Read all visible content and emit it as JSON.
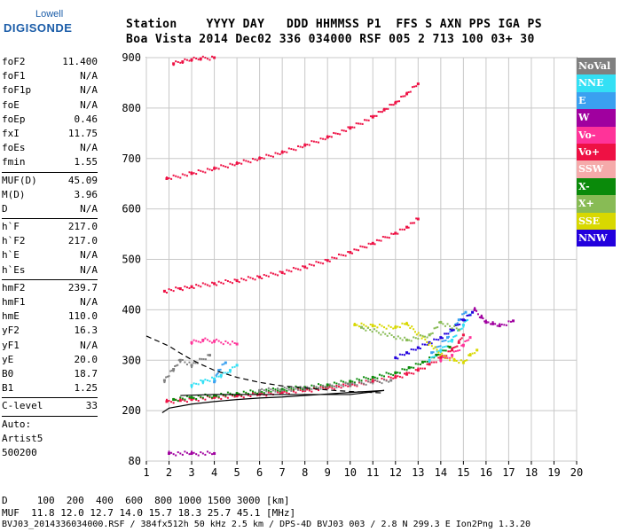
{
  "logo": {
    "line1": "Lowell",
    "line2": "DIGISONDE"
  },
  "header": {
    "line1": "Station    YYYY DAY   DDD HHMMSS P1  FFS S AXN PPS IGA PS",
    "line2": "Boa Vista 2014 Dec02 336 034000 RSF 005 2 713 100 03+ 30"
  },
  "params": {
    "group1": [
      {
        "name": "foF2",
        "value": "11.400"
      },
      {
        "name": "foF1",
        "value": "N/A"
      },
      {
        "name": "foF1p",
        "value": "N/A"
      },
      {
        "name": "foE",
        "value": "N/A"
      },
      {
        "name": "foEp",
        "value": "0.46"
      },
      {
        "name": "fxI",
        "value": "11.75"
      },
      {
        "name": "foEs",
        "value": "N/A"
      },
      {
        "name": "fmin",
        "value": "1.55"
      }
    ],
    "group2": [
      {
        "name": "MUF(D)",
        "value": "45.09"
      },
      {
        "name": "M(D)",
        "value": "3.96"
      },
      {
        "name": "D",
        "value": "N/A"
      }
    ],
    "group3": [
      {
        "name": "h`F",
        "value": "217.0"
      },
      {
        "name": "h`F2",
        "value": "217.0"
      },
      {
        "name": "h`E",
        "value": "N/A"
      },
      {
        "name": "h`Es",
        "value": "N/A"
      }
    ],
    "group4": [
      {
        "name": "hmF2",
        "value": "239.7"
      },
      {
        "name": "hmF1",
        "value": "N/A"
      },
      {
        "name": "hmE",
        "value": "110.0"
      },
      {
        "name": "yF2",
        "value": "16.3"
      },
      {
        "name": "yF1",
        "value": "N/A"
      },
      {
        "name": "yE",
        "value": "20.0"
      },
      {
        "name": "B0",
        "value": "18.7"
      },
      {
        "name": "B1",
        "value": "1.25"
      }
    ],
    "group5": [
      {
        "name": "C-level",
        "value": "33"
      }
    ],
    "auto_lines": [
      "Auto:",
      "Artist5",
      "500200"
    ]
  },
  "legend": [
    {
      "label": "NoVal",
      "color": "#808080"
    },
    {
      "label": "NNE",
      "color": "#33e0f5"
    },
    {
      "label": "E",
      "color": "#3aa0f0"
    },
    {
      "label": "W",
      "color": "#a0009f"
    },
    {
      "label": "Vo-",
      "color": "#ff3399"
    },
    {
      "label": "Vo+",
      "color": "#ee1144"
    },
    {
      "label": "SSW",
      "color": "#f5aaaa"
    },
    {
      "label": "X-",
      "color": "#0a8a0a"
    },
    {
      "label": "X+",
      "color": "#88bb55"
    },
    {
      "label": "SSE",
      "color": "#d8d800"
    },
    {
      "label": "NNW",
      "color": "#2200dd"
    }
  ],
  "footer": {
    "d_line": "D     100  200  400  600  800 1000 1500 3000 [km]",
    "muf_line": "MUF  11.8 12.0 12.7 14.0 15.7 18.3 25.7 45.1 [MHz]",
    "file_line": "BVJ03_2014336034000.RSF / 384fx512h 50 kHz 2.5 km / DPS-4D BVJ03 003 / 2.8 N 299.3 E Ion2Png 1.3.20"
  },
  "chart_data": {
    "type": "scatter",
    "x_range": [
      1,
      20
    ],
    "y_range": [
      80,
      900
    ],
    "x_ticks": [
      "1",
      "2",
      "3",
      "4",
      "5",
      "6",
      "7",
      "8",
      "9",
      "10",
      "11",
      "12",
      "13",
      "14",
      "15",
      "16",
      "17",
      "18",
      "19",
      "20"
    ],
    "y_ticks": [
      {
        "label": "80",
        "value": 80
      },
      {
        "label": "200",
        "value": 200
      },
      {
        "label": "300",
        "value": 300
      },
      {
        "label": "400",
        "value": 400
      },
      {
        "label": "500",
        "value": 500
      },
      {
        "label": "600",
        "value": 600
      },
      {
        "label": "700",
        "value": 700
      },
      {
        "label": "800",
        "value": 800
      },
      {
        "label": "900",
        "value": 900
      }
    ],
    "traces": [
      {
        "name": "F2 o-trace",
        "color": "#ee1144",
        "points": [
          [
            1.9,
            218
          ],
          [
            2.5,
            220
          ],
          [
            3,
            222
          ],
          [
            4,
            226
          ],
          [
            5,
            229
          ],
          [
            6,
            232
          ],
          [
            7,
            236
          ],
          [
            8,
            240
          ],
          [
            9,
            245
          ],
          [
            10,
            250
          ],
          [
            11,
            258
          ],
          [
            12,
            266
          ],
          [
            12.5,
            272
          ],
          [
            13,
            280
          ],
          [
            13.5,
            292
          ],
          [
            14,
            305
          ],
          [
            14.5,
            320
          ],
          [
            14.8,
            335
          ],
          [
            15,
            350
          ]
        ]
      },
      {
        "name": "2F2 echo",
        "color": "#ee1144",
        "points": [
          [
            1.8,
            437
          ],
          [
            2.5,
            442
          ],
          [
            3,
            446
          ],
          [
            4,
            452
          ],
          [
            5,
            458
          ],
          [
            6,
            465
          ],
          [
            7,
            474
          ],
          [
            8,
            485
          ],
          [
            9,
            498
          ],
          [
            10,
            514
          ],
          [
            11,
            532
          ],
          [
            12,
            552
          ],
          [
            12.5,
            564
          ],
          [
            13,
            580
          ]
        ]
      },
      {
        "name": "3F2 echo",
        "color": "#ee1144",
        "points": [
          [
            1.9,
            660
          ],
          [
            3,
            670
          ],
          [
            4,
            680
          ],
          [
            5,
            690
          ],
          [
            6,
            700
          ],
          [
            7,
            712
          ],
          [
            8,
            726
          ],
          [
            9,
            742
          ],
          [
            10,
            760
          ],
          [
            11,
            782
          ],
          [
            11.5,
            796
          ],
          [
            12,
            810
          ],
          [
            12.5,
            828
          ],
          [
            13,
            848
          ]
        ]
      },
      {
        "name": "4F2 echo",
        "color": "#ee1144",
        "points": [
          [
            2.2,
            888
          ],
          [
            2.6,
            892
          ],
          [
            3,
            896
          ],
          [
            3.4,
            898
          ],
          [
            4,
            900
          ]
        ]
      },
      {
        "name": "X-trace",
        "color": "#0a8a0a",
        "points": [
          [
            2.2,
            222
          ],
          [
            3,
            226
          ],
          [
            4,
            230
          ],
          [
            5,
            234
          ],
          [
            6,
            238
          ],
          [
            7,
            242
          ],
          [
            8,
            246
          ],
          [
            9,
            251
          ],
          [
            10,
            258
          ],
          [
            11,
            266
          ],
          [
            12,
            275
          ],
          [
            12.6,
            285
          ],
          [
            13.2,
            296
          ],
          [
            13.8,
            310
          ],
          [
            14.4,
            326
          ]
        ]
      },
      {
        "name": "Oblique NNE",
        "color": "#33e0f5",
        "points": [
          [
            3,
            250
          ],
          [
            3.5,
            258
          ],
          [
            4,
            263
          ],
          [
            4.3,
            270
          ],
          [
            4.7,
            280
          ],
          [
            5,
            290
          ],
          [
            13.5,
            300
          ],
          [
            14,
            320
          ],
          [
            14.5,
            340
          ],
          [
            15,
            370
          ],
          [
            15.3,
            390
          ]
        ]
      },
      {
        "name": "Oblique E",
        "color": "#3aa0f0",
        "points": [
          [
            4,
            257
          ],
          [
            4.2,
            280
          ],
          [
            4.5,
            295
          ],
          [
            13.6,
            315
          ],
          [
            14.3,
            345
          ],
          [
            14.8,
            380
          ],
          [
            15.1,
            395
          ]
        ]
      },
      {
        "name": "W echoes",
        "color": "#a0009f",
        "points": [
          [
            15.5,
            400
          ],
          [
            15.8,
            385
          ],
          [
            16,
            375
          ],
          [
            16.3,
            372
          ],
          [
            16.6,
            368
          ],
          [
            17.2,
            378
          ],
          [
            2,
            98
          ],
          [
            3,
            98
          ],
          [
            4,
            98
          ]
        ]
      },
      {
        "name": "NNW echoes",
        "color": "#2200dd",
        "points": [
          [
            12,
            305
          ],
          [
            12.5,
            315
          ],
          [
            13,
            325
          ],
          [
            13.5,
            335
          ],
          [
            14,
            345
          ],
          [
            14.5,
            360
          ],
          [
            15,
            380
          ],
          [
            15.4,
            395
          ]
        ]
      },
      {
        "name": "SSE echoes",
        "color": "#d8d800",
        "points": [
          [
            10.2,
            370
          ],
          [
            11,
            368
          ],
          [
            12,
            365
          ],
          [
            12.5,
            372
          ],
          [
            14.2,
            305
          ],
          [
            14.6,
            300
          ],
          [
            15,
            295
          ],
          [
            15.3,
            310
          ],
          [
            15.6,
            320
          ]
        ]
      },
      {
        "name": "Vo- echoes",
        "color": "#ff3399",
        "points": [
          [
            3,
            335
          ],
          [
            3.5,
            340
          ],
          [
            4,
            338
          ],
          [
            5,
            332
          ],
          [
            14,
            300
          ],
          [
            14.5,
            310
          ],
          [
            15,
            330
          ],
          [
            15.3,
            345
          ]
        ]
      },
      {
        "name": "X+ echoes",
        "color": "#88bb55",
        "points": [
          [
            10.5,
            365
          ],
          [
            12.5,
            340
          ],
          [
            13.5,
            350
          ],
          [
            14,
            375
          ],
          [
            14.8,
            360
          ]
        ]
      },
      {
        "name": "NoVal",
        "color": "#808080",
        "points": [
          [
            1.8,
            260
          ],
          [
            2.2,
            282
          ],
          [
            2.5,
            300
          ],
          [
            3,
            290
          ],
          [
            3.8,
            310
          ],
          [
            6,
            240
          ],
          [
            8,
            244
          ],
          [
            10,
            252
          ],
          [
            11.8,
            260
          ]
        ]
      }
    ],
    "profile": {
      "name": "electron density profile",
      "color": "#000000",
      "points": [
        [
          1.7,
          195
        ],
        [
          2,
          205
        ],
        [
          3,
          213
        ],
        [
          4,
          218
        ],
        [
          5,
          222
        ],
        [
          6,
          225
        ],
        [
          7,
          227
        ],
        [
          8,
          230
        ],
        [
          9,
          233
        ],
        [
          10,
          236
        ],
        [
          11.5,
          240
        ],
        [
          10,
          232
        ],
        [
          8,
          232
        ],
        [
          6,
          232
        ],
        [
          4,
          232
        ],
        [
          2.5,
          230
        ]
      ]
    },
    "topside_dashed": {
      "color": "#000000",
      "points": [
        [
          1,
          348
        ],
        [
          1.5,
          338
        ],
        [
          2,
          328
        ],
        [
          2.5,
          314
        ],
        [
          3,
          301
        ],
        [
          3.5,
          290
        ],
        [
          4,
          280
        ],
        [
          5,
          266
        ],
        [
          6,
          256
        ],
        [
          7,
          249
        ],
        [
          8,
          245
        ],
        [
          9,
          241
        ],
        [
          10,
          238
        ],
        [
          11,
          236
        ],
        [
          11.5,
          235
        ]
      ]
    }
  }
}
